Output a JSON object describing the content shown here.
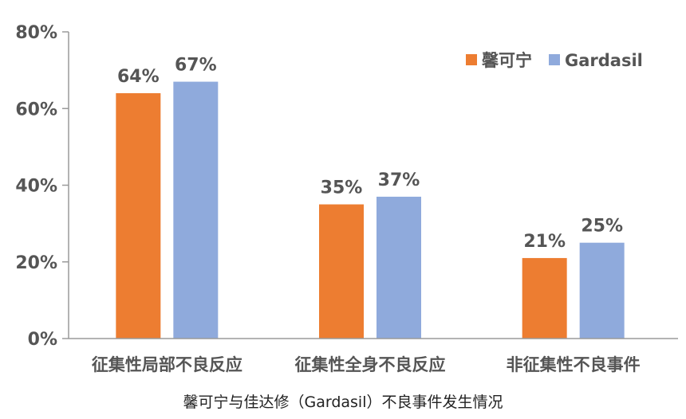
{
  "chart_data": {
    "type": "bar",
    "title": "馨可宁与佳达修（Gardasil）不良事件发生情况",
    "categories": [
      "征集性局部不良反应",
      "征集性全身不良反应",
      "非征集性不良事件"
    ],
    "series": [
      {
        "name": "馨可宁",
        "color": "#ED7D31",
        "values": [
          64,
          35,
          21
        ],
        "labels": [
          "64%",
          "35%",
          "21%"
        ]
      },
      {
        "name": "Gardasil",
        "color": "#8FAADC",
        "values": [
          67,
          37,
          25
        ],
        "labels": [
          "67%",
          "37%",
          "25%"
        ]
      }
    ],
    "ylim": [
      0,
      80
    ],
    "yticks": [
      0,
      20,
      40,
      60,
      80
    ],
    "ytick_labels": [
      "0%",
      "20%",
      "40%",
      "60%",
      "80%"
    ],
    "xlabel": "",
    "ylabel": "",
    "legend": "top-right",
    "grid": false
  }
}
